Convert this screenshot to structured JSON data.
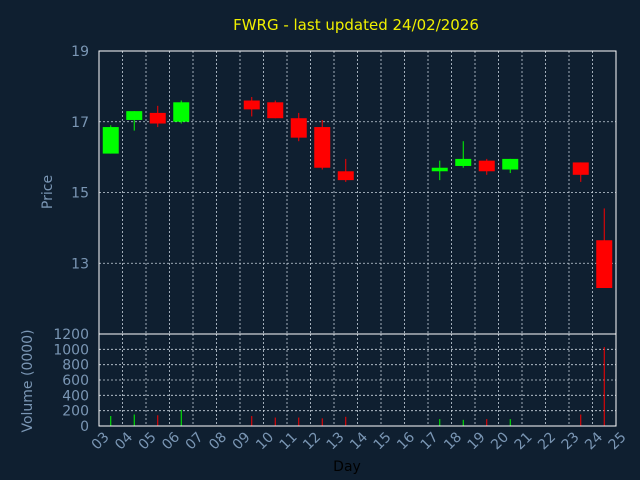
{
  "chart_data": {
    "type": "candlestick",
    "title": "FWRG - last updated 24/02/2026",
    "ylabel": "Price",
    "ylabel_volume": "Volume (0000)",
    "xlabel": "Day",
    "ylim": [
      11,
      19
    ],
    "yticks": [
      "19",
      "17",
      "15",
      "13"
    ],
    "volume_ylim": [
      0,
      1200
    ],
    "volume_ticks": [
      "1200",
      "1000",
      "800",
      "600",
      "400",
      "200",
      "0"
    ],
    "x_ticks": [
      "03",
      "04",
      "05",
      "06",
      "07",
      "08",
      "09",
      "10",
      "11",
      "12",
      "13",
      "14",
      "15",
      "16",
      "17",
      "18",
      "19",
      "20",
      "21",
      "22",
      "23",
      "24",
      "25"
    ],
    "grid": true,
    "colors": {
      "up": "#00ff00",
      "down": "#ff0000",
      "title": "#f0f000"
    },
    "candles": [
      {
        "day": "03",
        "open": 16.1,
        "high": 16.9,
        "low": 16.1,
        "close": 16.85,
        "volume": 130
      },
      {
        "day": "04",
        "open": 17.05,
        "high": 17.3,
        "low": 16.75,
        "close": 17.3,
        "volume": 150
      },
      {
        "day": "05",
        "open": 17.25,
        "high": 17.45,
        "low": 16.85,
        "close": 16.95,
        "volume": 140
      },
      {
        "day": "06",
        "open": 17.0,
        "high": 17.6,
        "low": 16.95,
        "close": 17.55,
        "volume": 210
      },
      {
        "day": "09",
        "open": 17.6,
        "high": 17.7,
        "low": 17.15,
        "close": 17.35,
        "volume": 130
      },
      {
        "day": "10",
        "open": 17.55,
        "high": 17.6,
        "low": 17.1,
        "close": 17.1,
        "volume": 110
      },
      {
        "day": "11",
        "open": 17.1,
        "high": 17.25,
        "low": 16.45,
        "close": 16.55,
        "volume": 110
      },
      {
        "day": "12",
        "open": 16.85,
        "high": 17.05,
        "low": 15.65,
        "close": 15.7,
        "volume": 100
      },
      {
        "day": "13",
        "open": 15.6,
        "high": 15.95,
        "low": 15.3,
        "close": 15.35,
        "volume": 120
      },
      {
        "day": "17",
        "open": 15.6,
        "high": 15.9,
        "low": 15.35,
        "close": 15.7,
        "volume": 90
      },
      {
        "day": "18",
        "open": 15.75,
        "high": 16.45,
        "low": 15.7,
        "close": 15.95,
        "volume": 80
      },
      {
        "day": "19",
        "open": 15.9,
        "high": 15.95,
        "low": 15.5,
        "close": 15.6,
        "volume": 90
      },
      {
        "day": "20",
        "open": 15.65,
        "high": 15.95,
        "low": 15.55,
        "close": 15.95,
        "volume": 90
      },
      {
        "day": "23",
        "open": 15.85,
        "high": 15.85,
        "low": 15.3,
        "close": 15.5,
        "volume": 150
      },
      {
        "day": "24",
        "open": 13.65,
        "high": 14.55,
        "low": 12.3,
        "close": 12.3,
        "volume": 1030
      }
    ]
  }
}
